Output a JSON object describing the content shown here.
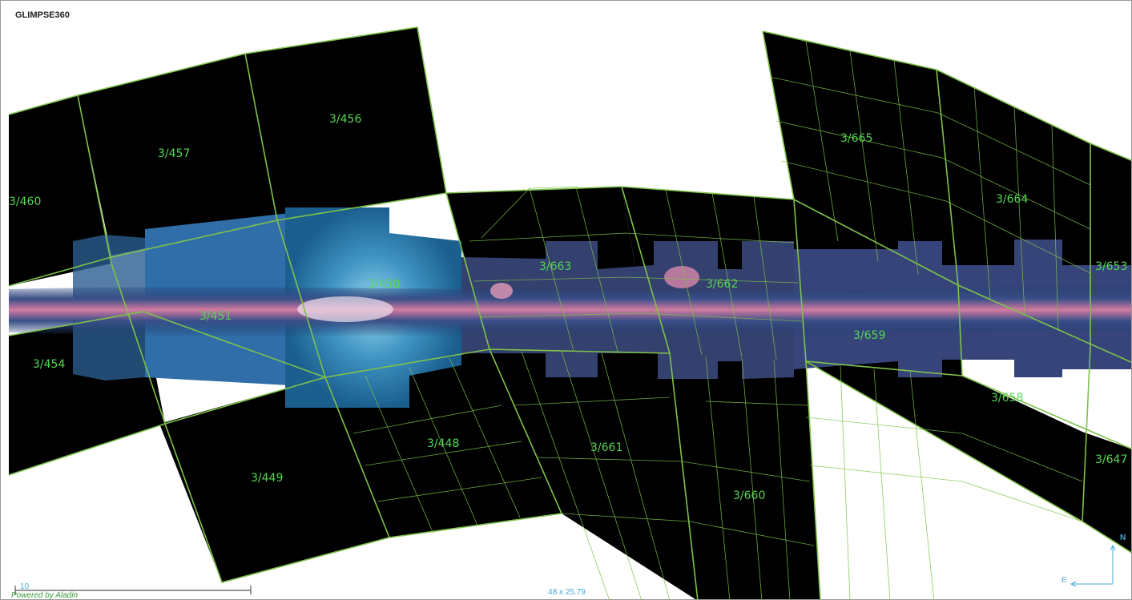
{
  "survey": {
    "title": "GLIMPSE360"
  },
  "tiles": [
    {
      "label": "3/460"
    },
    {
      "label": "3/457"
    },
    {
      "label": "3/456"
    },
    {
      "label": "3/451"
    },
    {
      "label": "3/450"
    },
    {
      "label": "3/454"
    },
    {
      "label": "3/449"
    },
    {
      "label": "3/448"
    },
    {
      "label": "3/663"
    },
    {
      "label": "3/662"
    },
    {
      "label": "3/661"
    },
    {
      "label": "3/660"
    },
    {
      "label": "3/665"
    },
    {
      "label": "3/664"
    },
    {
      "label": "3/653"
    },
    {
      "label": "3/659"
    },
    {
      "label": "3/658"
    },
    {
      "label": "3/647"
    }
  ],
  "overlay": {
    "scale": "10",
    "powered_by": "Powered by Aladin",
    "fov": "48 x 25.79",
    "north": "N",
    "east": "E"
  },
  "colors": {
    "grid": "#7fc24a",
    "label": "#55d655",
    "overlay_text": "#4aa8d8",
    "powered": "#3a9a3a"
  }
}
